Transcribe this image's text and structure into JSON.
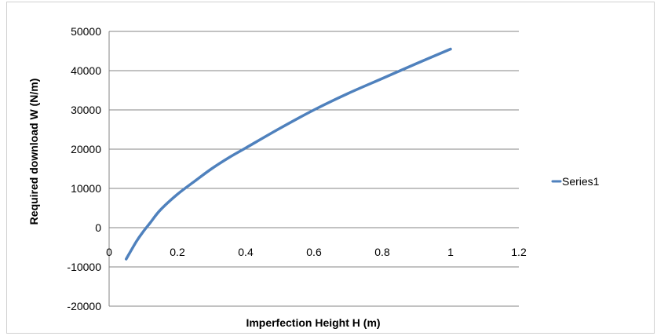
{
  "chart_data": {
    "type": "line",
    "xlabel": "Imperfection Height H (m)",
    "ylabel": "Required download W  (N/m)",
    "xlim": [
      0,
      1.2
    ],
    "ylim": [
      -20000,
      50000
    ],
    "x_ticks": [
      "0",
      "0.2",
      "0.4",
      "0.6",
      "0.8",
      "1",
      "1.2"
    ],
    "y_ticks": [
      "50000",
      "40000",
      "30000",
      "20000",
      "10000",
      "0",
      "-10000",
      "-20000"
    ],
    "grid": "horizontal",
    "legend_position": "right",
    "series": [
      {
        "name": "Series1",
        "color": "#4f81bd",
        "x": [
          0.05,
          0.08,
          0.1,
          0.12,
          0.15,
          0.2,
          0.25,
          0.3,
          0.35,
          0.4,
          0.5,
          0.6,
          0.7,
          0.8,
          0.9,
          1.0
        ],
        "y": [
          -8000,
          -3500,
          -1000,
          1200,
          4500,
          8500,
          11800,
          15000,
          17800,
          20300,
          25300,
          30000,
          34200,
          38000,
          41800,
          45500
        ]
      }
    ]
  }
}
